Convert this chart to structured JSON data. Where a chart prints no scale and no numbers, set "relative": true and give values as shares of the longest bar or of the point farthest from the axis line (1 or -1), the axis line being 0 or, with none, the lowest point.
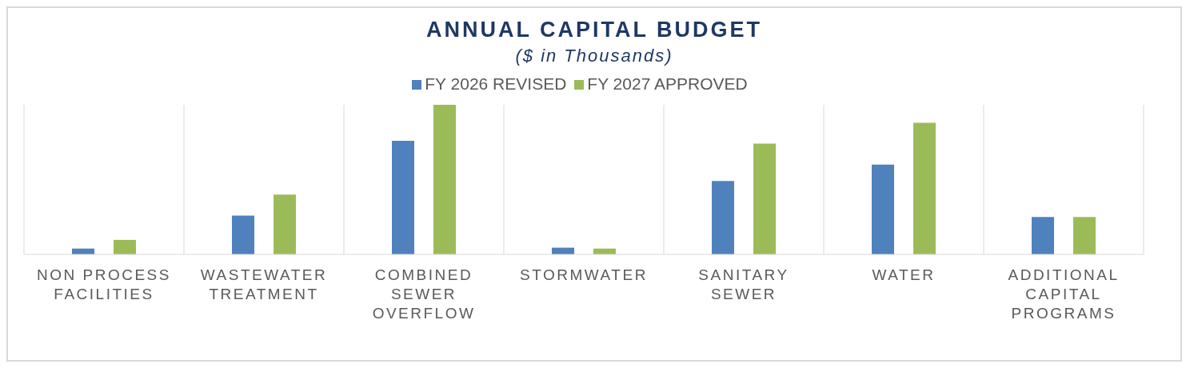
{
  "chart_data": {
    "type": "bar",
    "title": "ANNUAL CAPITAL BUDGET",
    "subtitle": "($ in Thousands)",
    "relative": true,
    "categories": [
      "NON PROCESS FACILITIES",
      "WASTEWATER TREATMENT",
      "COMBINED SEWER OVERFLOW",
      "STORMWATER",
      "SANITARY SEWER",
      "WATER",
      "ADDITIONAL CAPITAL PROGRAMS"
    ],
    "series": [
      {
        "name": "FY 2026 REVISED",
        "color": "#4f81bd",
        "values": [
          0.039,
          0.26,
          0.76,
          0.045,
          0.49,
          0.6,
          0.25
        ]
      },
      {
        "name": "FY 2027 APPROVED",
        "color": "#9bbb59",
        "values": [
          0.097,
          0.4,
          1,
          0.039,
          0.74,
          0.88,
          0.25
        ]
      }
    ],
    "legend": "top",
    "grid": "x"
  }
}
